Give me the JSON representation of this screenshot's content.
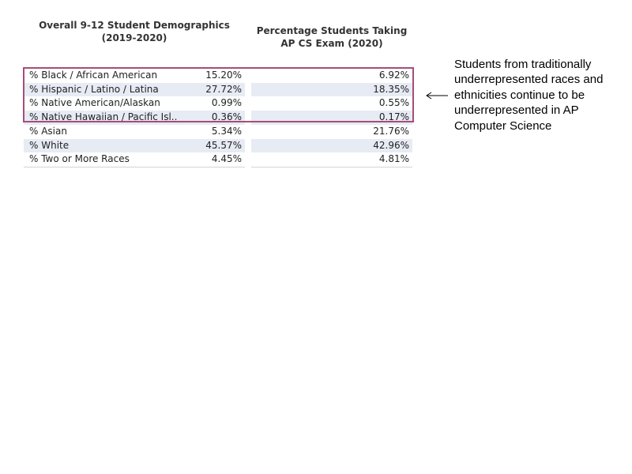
{
  "chart_data": {
    "type": "table",
    "columns": [
      {
        "title_line1": "Overall 9-12 Student Demographics",
        "title_line2": "(2019-2020)"
      },
      {
        "title_line1": "Percentage Students Taking",
        "title_line2": "AP CS Exam (2020)"
      }
    ],
    "rows": [
      {
        "label": "% Black / African American",
        "demographics": "15.20%",
        "ap_cs": "6.92%",
        "shaded": false,
        "highlighted": true
      },
      {
        "label": "% Hispanic / Latino / Latina",
        "demographics": "27.72%",
        "ap_cs": "18.35%",
        "shaded": true,
        "highlighted": true
      },
      {
        "label": "% Native American/Alaskan",
        "demographics": "0.99%",
        "ap_cs": "0.55%",
        "shaded": false,
        "highlighted": true
      },
      {
        "label": "% Native Hawaiian / Pacific Isl..",
        "demographics": "0.36%",
        "ap_cs": "0.17%",
        "shaded": true,
        "highlighted": true
      },
      {
        "label": "% Asian",
        "demographics": "5.34%",
        "ap_cs": "21.76%",
        "shaded": false,
        "highlighted": false
      },
      {
        "label": "% White",
        "demographics": "45.57%",
        "ap_cs": "42.96%",
        "shaded": true,
        "highlighted": false
      },
      {
        "label": "% Two or More Races",
        "demographics": "4.45%",
        "ap_cs": "4.81%",
        "shaded": false,
        "highlighted": false
      }
    ],
    "annotation": "Students from traditionally underrepresented races and ethnicities continue to be underrepresented in AP Computer Science",
    "colors": {
      "row_shade": "#e7ebf4",
      "highlight_border": "#a64d79"
    }
  }
}
